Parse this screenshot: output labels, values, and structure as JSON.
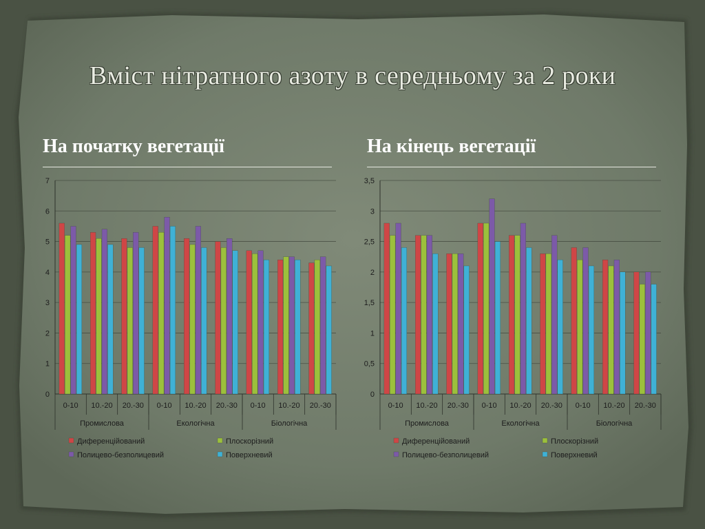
{
  "slide": {
    "title": "Вміст нітратного азоту в середньому за 2 роки",
    "left_heading": "На початку вегетації",
    "right_heading": "На кінець вегетації"
  },
  "colors": {
    "Диференційований": "#cf4646",
    "Плоскорізний": "#9cc03c",
    "Полицево-безполицевий": "#7c5aa8",
    "Поверхневий": "#3fb1d6"
  },
  "chart_data": [
    {
      "type": "bar",
      "title": "",
      "groups": [
        "Промислова",
        "Екологічна",
        "Біологічна"
      ],
      "categories": [
        "0-10",
        "10.-20",
        "20.-30",
        "0-10",
        "10.-20",
        "20.-30",
        "0-10",
        "10.-20",
        "20.-30"
      ],
      "ylim": [
        0,
        7
      ],
      "yticks": [
        "0",
        "1",
        "2",
        "3",
        "4",
        "5",
        "6",
        "7"
      ],
      "grid": true,
      "legend": "bottom",
      "series": [
        {
          "name": "Диференційований",
          "values": [
            5.6,
            5.3,
            5.1,
            5.5,
            5.1,
            5.0,
            4.7,
            4.4,
            4.3
          ]
        },
        {
          "name": "Плоскорізний",
          "values": [
            5.2,
            5.1,
            4.8,
            5.3,
            4.9,
            4.8,
            4.6,
            4.5,
            4.4
          ]
        },
        {
          "name": "Полицево-безполицевий",
          "values": [
            5.5,
            5.4,
            5.3,
            5.8,
            5.5,
            5.1,
            4.7,
            4.5,
            4.5
          ]
        },
        {
          "name": "Поверхневий",
          "values": [
            4.9,
            4.9,
            4.8,
            5.5,
            4.8,
            4.7,
            4.4,
            4.4,
            4.2
          ]
        }
      ]
    },
    {
      "type": "bar",
      "title": "",
      "groups": [
        "Промислова",
        "Екологічна",
        "Біологічна"
      ],
      "categories": [
        "0-10",
        "10.-20",
        "20.-30",
        "0-10",
        "10.-20",
        "20.-30",
        "0-10",
        "10.-20",
        "20.-30"
      ],
      "ylim": [
        0,
        3.5
      ],
      "yticks": [
        "0",
        "0,5",
        "1",
        "1,5",
        "2",
        "2,5",
        "3",
        "3,5"
      ],
      "grid": true,
      "legend": "bottom",
      "series": [
        {
          "name": "Диференційований",
          "values": [
            2.8,
            2.6,
            2.3,
            2.8,
            2.6,
            2.3,
            2.4,
            2.2,
            2.0
          ]
        },
        {
          "name": "Плоскорізний",
          "values": [
            2.6,
            2.6,
            2.3,
            2.8,
            2.6,
            2.3,
            2.2,
            2.1,
            1.8
          ]
        },
        {
          "name": "Полицево-безполицевий",
          "values": [
            2.8,
            2.6,
            2.3,
            3.2,
            2.8,
            2.6,
            2.4,
            2.2,
            2.0
          ]
        },
        {
          "name": "Поверхневий",
          "values": [
            2.4,
            2.3,
            2.1,
            2.5,
            2.4,
            2.2,
            2.1,
            2.0,
            1.8
          ]
        }
      ]
    }
  ]
}
